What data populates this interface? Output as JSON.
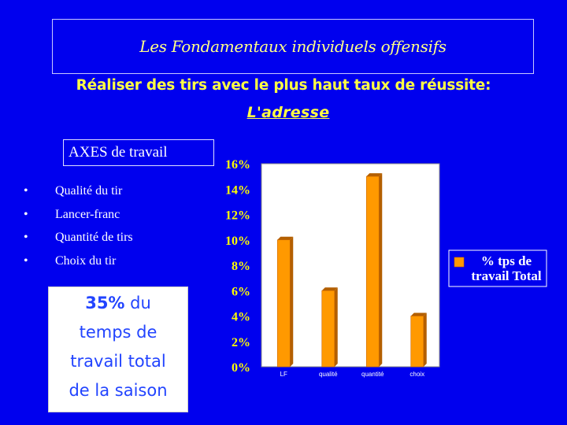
{
  "title": "Les Fondamentaux individuels offensifs",
  "subtitle": {
    "line1": "Réaliser des tirs avec le plus haut taux de réussite:",
    "line2": "L'adresse"
  },
  "axes_box": {
    "label": "AXES de travail"
  },
  "bullets": [
    "Qualité du tir",
    "Lancer-franc",
    "Quantité de tirs",
    "Choix du tir"
  ],
  "bullet_char": "•",
  "percent_box": {
    "pct": "35%",
    "text1": " du",
    "text2": "temps de",
    "text3": "travail total",
    "text4": "de la saison"
  },
  "colors": {
    "background": "#0000ee",
    "bar": "#ff9900",
    "bar_shadow": "#b35f00",
    "plot_bg": "#ffffff",
    "tick_text": "#ffff00",
    "legend_text": "#ffffff"
  },
  "chart_data": {
    "type": "bar",
    "categories": [
      "LF",
      "qualité",
      "quantité",
      "choix"
    ],
    "series": [
      {
        "name": "% tps de travail Total",
        "values": [
          10,
          6,
          15,
          4
        ]
      }
    ],
    "ylim": [
      0,
      16
    ],
    "yticks": [
      "0%",
      "2%",
      "4%",
      "6%",
      "8%",
      "10%",
      "12%",
      "14%",
      "16%"
    ],
    "grid": false,
    "legend_position": "right"
  }
}
